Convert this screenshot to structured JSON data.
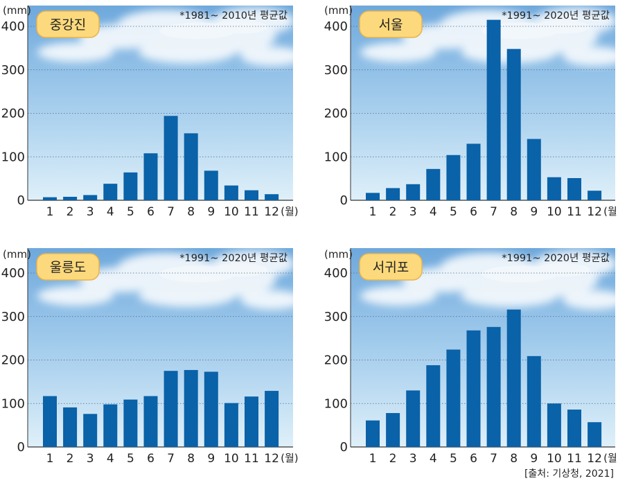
{
  "chart_data": [
    {
      "type": "bar",
      "station": "중강진",
      "note": "*1981~ 2010년 평균값",
      "unit": "(mm)",
      "x_unit": "(월)",
      "categories": [
        "1",
        "2",
        "3",
        "4",
        "5",
        "6",
        "7",
        "8",
        "9",
        "10",
        "11",
        "12"
      ],
      "values": [
        7,
        8,
        12,
        38,
        64,
        108,
        194,
        154,
        68,
        34,
        23,
        14
      ],
      "ylim": [
        0,
        400
      ],
      "yticks": [
        "0",
        "100",
        "200",
        "300",
        "400"
      ],
      "grid": true
    },
    {
      "type": "bar",
      "station": "서울",
      "note": "*1991~ 2020년 평균값",
      "unit": "(mm)",
      "x_unit": "(월)",
      "categories": [
        "1",
        "2",
        "3",
        "4",
        "5",
        "6",
        "7",
        "8",
        "9",
        "10",
        "11",
        "12"
      ],
      "values": [
        17,
        28,
        37,
        72,
        104,
        130,
        415,
        348,
        141,
        53,
        51,
        22
      ],
      "ylim": [
        0,
        400
      ],
      "yticks": [
        "0",
        "100",
        "200",
        "300",
        "400"
      ],
      "grid": true
    },
    {
      "type": "bar",
      "station": "울릉도",
      "note": "*1991~ 2020년 평균값",
      "unit": "(mm)",
      "x_unit": "(월)",
      "categories": [
        "1",
        "2",
        "3",
        "4",
        "5",
        "6",
        "7",
        "8",
        "9",
        "10",
        "11",
        "12"
      ],
      "values": [
        117,
        91,
        76,
        98,
        109,
        117,
        175,
        177,
        173,
        101,
        116,
        129
      ],
      "ylim": [
        0,
        400
      ],
      "yticks": [
        "0",
        "100",
        "200",
        "300",
        "400"
      ],
      "grid": true
    },
    {
      "type": "bar",
      "station": "서귀포",
      "note": "*1991~ 2020년 평균값",
      "unit": "(mm)",
      "x_unit": "(월)",
      "categories": [
        "1",
        "2",
        "3",
        "4",
        "5",
        "6",
        "7",
        "8",
        "9",
        "10",
        "11",
        "12"
      ],
      "values": [
        61,
        78,
        130,
        188,
        224,
        268,
        276,
        316,
        209,
        100,
        86,
        57
      ],
      "ylim": [
        0,
        400
      ],
      "yticks": [
        "0",
        "100",
        "200",
        "300",
        "400"
      ],
      "grid": true
    }
  ],
  "colors": {
    "bar": "#0a62a8",
    "label_fill": "#fcd97c",
    "label_stroke": "#e9b24a",
    "sky_top": "#6ea8dc",
    "sky_bottom": "#d8ecf7",
    "grid": "#4a6a85"
  },
  "source": "[출처: 기상청, 2021]"
}
